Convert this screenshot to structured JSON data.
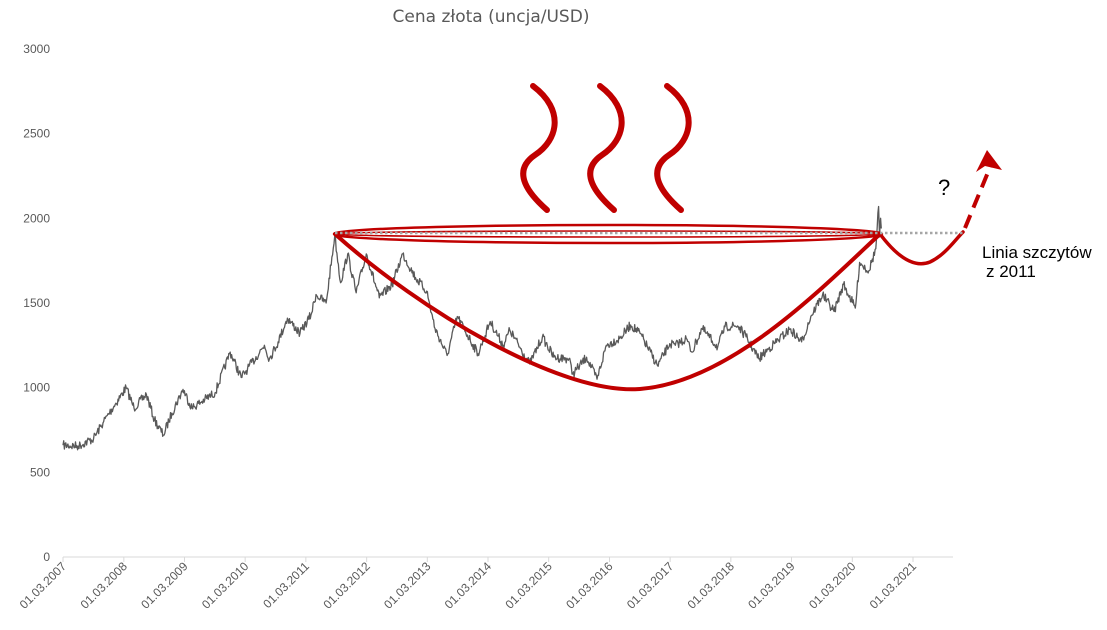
{
  "chart_data": {
    "type": "line",
    "title": "Cena złota (uncja/USD)",
    "xlabel": "",
    "ylabel": "",
    "ylim": [
      0,
      3000
    ],
    "yticks": [
      "0",
      "500",
      "1000",
      "1500",
      "2000",
      "2500",
      "3000"
    ],
    "xticks": [
      "01.03.2007",
      "01.03.2008",
      "01.03.2009",
      "01.03.2010",
      "01.03.2011",
      "01.03.2012",
      "01.03.2013",
      "01.03.2014",
      "01.03.2015",
      "01.03.2016",
      "01.03.2017",
      "01.03.2018",
      "01.03.2019",
      "01.03.2020",
      "01.03.2021"
    ],
    "grid": false,
    "legend": "none",
    "series": [
      {
        "color": "#595959",
        "points": [
          [
            "2007-03-01",
            660
          ],
          [
            "2007-06-01",
            655
          ],
          [
            "2007-09-01",
            700
          ],
          [
            "2007-11-01",
            800
          ],
          [
            "2008-01-01",
            890
          ],
          [
            "2008-03-15",
            1000
          ],
          [
            "2008-05-01",
            880
          ],
          [
            "2008-07-15",
            960
          ],
          [
            "2008-09-01",
            810
          ],
          [
            "2008-10-25",
            720
          ],
          [
            "2008-12-15",
            850
          ],
          [
            "2009-02-20",
            990
          ],
          [
            "2009-04-15",
            880
          ],
          [
            "2009-07-01",
            930
          ],
          [
            "2009-09-01",
            970
          ],
          [
            "2009-12-01",
            1210
          ],
          [
            "2010-02-05",
            1060
          ],
          [
            "2010-03-15",
            1110
          ],
          [
            "2010-06-25",
            1250
          ],
          [
            "2010-07-25",
            1170
          ],
          [
            "2010-09-15",
            1270
          ],
          [
            "2010-11-10",
            1410
          ],
          [
            "2011-01-25",
            1320
          ],
          [
            "2011-04-01",
            1430
          ],
          [
            "2011-05-01",
            1550
          ],
          [
            "2011-07-01",
            1500
          ],
          [
            "2011-08-22",
            1900
          ],
          [
            "2011-09-26",
            1620
          ],
          [
            "2011-11-08",
            1790
          ],
          [
            "2011-12-29",
            1560
          ],
          [
            "2012-02-28",
            1790
          ],
          [
            "2012-05-16",
            1530
          ],
          [
            "2012-08-01",
            1610
          ],
          [
            "2012-10-04",
            1790
          ],
          [
            "2012-12-20",
            1650
          ],
          [
            "2013-02-25",
            1570
          ],
          [
            "2013-04-16",
            1350
          ],
          [
            "2013-06-28",
            1190
          ],
          [
            "2013-08-28",
            1420
          ],
          [
            "2013-12-31",
            1200
          ],
          [
            "2014-03-14",
            1390
          ],
          [
            "2014-06-01",
            1250
          ],
          [
            "2014-07-10",
            1340
          ],
          [
            "2014-11-07",
            1140
          ],
          [
            "2015-01-22",
            1300
          ],
          [
            "2015-04-01",
            1180
          ],
          [
            "2015-07-01",
            1170
          ],
          [
            "2015-07-24",
            1080
          ],
          [
            "2015-10-15",
            1180
          ],
          [
            "2015-12-17",
            1050
          ],
          [
            "2016-02-11",
            1250
          ],
          [
            "2016-05-01",
            1290
          ],
          [
            "2016-07-06",
            1370
          ],
          [
            "2016-09-01",
            1320
          ],
          [
            "2016-12-15",
            1130
          ],
          [
            "2017-02-27",
            1260
          ],
          [
            "2017-04-01",
            1250
          ],
          [
            "2017-06-06",
            1290
          ],
          [
            "2017-07-10",
            1210
          ],
          [
            "2017-09-08",
            1350
          ],
          [
            "2017-12-12",
            1240
          ],
          [
            "2018-01-25",
            1360
          ],
          [
            "2018-04-11",
            1365
          ],
          [
            "2018-06-01",
            1300
          ],
          [
            "2018-08-16",
            1170
          ],
          [
            "2018-10-15",
            1230
          ],
          [
            "2019-02-20",
            1345
          ],
          [
            "2019-05-01",
            1270
          ],
          [
            "2019-06-25",
            1420
          ],
          [
            "2019-09-04",
            1550
          ],
          [
            "2019-11-12",
            1450
          ],
          [
            "2020-01-08",
            1610
          ],
          [
            "2020-03-19",
            1470
          ],
          [
            "2020-04-14",
            1740
          ],
          [
            "2020-06-08",
            1690
          ],
          [
            "2020-07-20",
            1820
          ],
          [
            "2020-08-06",
            2070
          ],
          [
            "2020-08-12",
            1890
          ],
          [
            "2020-08-18",
            2000
          ],
          [
            "2020-08-22",
            1940
          ]
        ]
      }
    ],
    "annotations": {
      "peak_label_line1": "Linia szczytów",
      "peak_label_line2": "z 2011",
      "question_mark": "?",
      "pattern_color": "#c00000",
      "resistance_line_color": "#a6a6a6",
      "resistance_level": 1915
    }
  }
}
